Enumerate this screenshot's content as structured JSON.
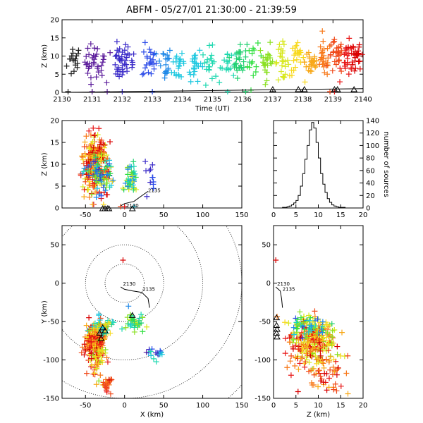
{
  "title": "ABFM - 05/27/01 21:30:00 - 21:39:59",
  "palette": [
    "#202020",
    "#5a1a9a",
    "#3a2ac8",
    "#2a4ae8",
    "#1e88e8",
    "#1ec8e0",
    "#1ed8b0",
    "#20d070",
    "#30e040",
    "#8ae020",
    "#d8e81e",
    "#f8d818",
    "#f8a818",
    "#f87818",
    "#f04818",
    "#e81818",
    "#d80000"
  ],
  "chart_data": [
    {
      "id": "time",
      "type": "scatter",
      "xlabel": "Time (UT)",
      "ylabel": "Z (km)",
      "xlim": [
        2130,
        2140
      ],
      "ylim": [
        0,
        20
      ],
      "xticks": [
        2130,
        2131,
        2132,
        2133,
        2134,
        2135,
        2136,
        2137,
        2138,
        2139,
        2140
      ],
      "yticks": [
        0,
        5,
        10,
        15,
        20
      ],
      "clusters": [
        {
          "t": 2130.4,
          "z": 8.5,
          "n": 18,
          "c": 0
        },
        {
          "t": 2131.0,
          "z": 8.5,
          "n": 24,
          "c": 1
        },
        {
          "t": 2131.4,
          "z": 7.5,
          "n": 12,
          "c": 1
        },
        {
          "t": 2131.9,
          "z": 8.0,
          "n": 30,
          "c": 2
        },
        {
          "t": 2132.2,
          "z": 8.5,
          "n": 14,
          "c": 2
        },
        {
          "t": 2132.9,
          "z": 8.5,
          "n": 24,
          "c": 3
        },
        {
          "t": 2133.4,
          "z": 8.0,
          "n": 20,
          "c": 4
        },
        {
          "t": 2133.9,
          "z": 7.5,
          "n": 20,
          "c": 5
        },
        {
          "t": 2134.4,
          "z": 8.0,
          "n": 24,
          "c": 5
        },
        {
          "t": 2134.9,
          "z": 7.5,
          "n": 20,
          "c": 6
        },
        {
          "t": 2135.5,
          "z": 8.5,
          "n": 16,
          "c": 6
        },
        {
          "t": 2135.9,
          "z": 9.0,
          "n": 28,
          "c": 7
        },
        {
          "t": 2136.4,
          "z": 8.0,
          "n": 14,
          "c": 8
        },
        {
          "t": 2136.8,
          "z": 8.5,
          "n": 24,
          "c": 9
        },
        {
          "t": 2137.3,
          "z": 8.5,
          "n": 26,
          "c": 10
        },
        {
          "t": 2137.8,
          "z": 9.0,
          "n": 24,
          "c": 11
        },
        {
          "t": 2138.3,
          "z": 8.5,
          "n": 28,
          "c": 12
        },
        {
          "t": 2138.7,
          "z": 9.0,
          "n": 26,
          "c": 13
        },
        {
          "t": 2139.1,
          "z": 9.5,
          "n": 28,
          "c": 14
        },
        {
          "t": 2139.5,
          "z": 9.0,
          "n": 26,
          "c": 15
        },
        {
          "t": 2139.85,
          "z": 10.0,
          "n": 28,
          "c": 16
        }
      ],
      "ground_marks": [
        {
          "t": 2130.2,
          "c": 0
        },
        {
          "t": 2131.0,
          "c": 1
        },
        {
          "t": 2131.5,
          "c": 1
        },
        {
          "t": 2132.0,
          "c": 2
        },
        {
          "t": 2133.0,
          "c": 3
        },
        {
          "t": 2135.5,
          "c": 6
        },
        {
          "t": 2136.1,
          "c": 7
        },
        {
          "t": 2138.9,
          "c": 14
        },
        {
          "t": 2139.05,
          "c": 15
        }
      ],
      "stations_t": [
        2137.0,
        2137.85,
        2138.05,
        2139.05,
        2139.15,
        2139.7
      ],
      "track": [
        [
          2130,
          0.0
        ],
        [
          2140,
          1.0
        ]
      ]
    },
    {
      "id": "xz",
      "type": "scatter",
      "ylabel": "Z (km)",
      "xlim": [
        -80,
        150
      ],
      "ylim": [
        0,
        20
      ],
      "xticks": [
        -50,
        0,
        50,
        100,
        150
      ],
      "yticks": [
        0,
        5,
        10,
        15,
        20
      ],
      "clusters": [
        {
          "x": -38,
          "z": 10,
          "sx": 8,
          "sz": 3.5,
          "n": 260,
          "c0": 10,
          "c1": 16
        },
        {
          "x": -32,
          "z": 8,
          "sx": 9,
          "sz": 2.5,
          "n": 70,
          "c0": 2,
          "c1": 9
        },
        {
          "x": 8,
          "z": 6.5,
          "sx": 4,
          "sz": 1.8,
          "n": 50,
          "c0": 4,
          "c1": 10
        },
        {
          "x": 35,
          "z": 6.5,
          "sx": 4,
          "sz": 2,
          "n": 12,
          "c0": 2,
          "c1": 4
        }
      ],
      "stations_x": [
        -28,
        -25,
        -22,
        -20,
        10
      ],
      "ground_marks": [
        {
          "x": -5,
          "c": 14
        },
        {
          "x": 0,
          "c": 15
        },
        {
          "x": 12,
          "c": 5
        }
      ],
      "track": [
        [
          -5,
          0.5
        ],
        [
          0,
          1.0
        ],
        [
          12,
          1.5
        ],
        [
          22,
          2.8
        ],
        [
          30,
          3.8
        ]
      ],
      "track_labels": [
        {
          "text": "2130",
          "x": 2,
          "z": 0.2
        },
        {
          "text": "2135",
          "x": 30,
          "z": 3.6
        }
      ]
    },
    {
      "id": "histogram",
      "type": "bar",
      "xlabel": "",
      "ylabel": "number of sources",
      "xlim": [
        0,
        20
      ],
      "ylim": [
        0,
        140
      ],
      "xticks": [
        0,
        5,
        10,
        15,
        20
      ],
      "yticks": [
        0,
        20,
        40,
        60,
        80,
        100,
        120,
        140
      ],
      "bin_width": 0.5,
      "bins_start": 2,
      "counts": [
        1,
        1,
        2,
        3,
        5,
        8,
        12,
        20,
        35,
        55,
        78,
        100,
        125,
        137,
        128,
        105,
        80,
        55,
        38,
        25,
        15,
        9,
        5,
        3,
        2,
        1,
        1,
        1
      ]
    },
    {
      "id": "xy",
      "type": "scatter",
      "xlabel": "X (km)",
      "ylabel": "Y (km)",
      "xlim": [
        -80,
        150
      ],
      "ylim": [
        -150,
        75
      ],
      "xticks": [
        -50,
        0,
        50,
        100,
        150
      ],
      "yticks": [
        -150,
        -100,
        -50,
        0,
        50
      ],
      "range_rings_km": [
        25,
        50,
        100,
        150,
        200
      ],
      "clusters": [
        {
          "x": -38,
          "y": -75,
          "sx": 6,
          "sy": 9,
          "n": 230,
          "c0": 11,
          "c1": 16
        },
        {
          "x": -30,
          "y": -58,
          "sx": 7,
          "sy": 6,
          "n": 60,
          "c0": 5,
          "c1": 12
        },
        {
          "x": -35,
          "y": -100,
          "sx": 6,
          "sy": 14,
          "n": 60,
          "c0": 9,
          "c1": 16
        },
        {
          "x": -22,
          "y": -130,
          "sx": 3,
          "sy": 8,
          "n": 25,
          "c0": 13,
          "c1": 16
        },
        {
          "x": 12,
          "y": -52,
          "sx": 6,
          "sy": 5,
          "n": 40,
          "c0": 5,
          "c1": 10
        },
        {
          "x": 35,
          "y": -93,
          "sx": 7,
          "sy": 4,
          "n": 18,
          "c0": 2,
          "c1": 6
        }
      ],
      "single_marks": [
        {
          "x": -2,
          "y": 30,
          "c": 16
        },
        {
          "x": 28,
          "y": -90,
          "c": 1
        },
        {
          "x": 5,
          "y": -30,
          "c": 4
        }
      ],
      "stations": [
        [
          -28,
          -58
        ],
        [
          -32,
          -65
        ],
        [
          -30,
          -72
        ],
        [
          -25,
          -62
        ],
        [
          10,
          -42
        ]
      ],
      "track": [
        [
          -5,
          -5
        ],
        [
          0,
          -8
        ],
        [
          10,
          -10
        ],
        [
          22,
          -12
        ],
        [
          30,
          -20
        ],
        [
          32,
          -32
        ]
      ],
      "track_labels": [
        {
          "text": "2130",
          "x": -2,
          "y": -3
        },
        {
          "text": "2135",
          "x": 23,
          "y": -10
        }
      ]
    },
    {
      "id": "zy",
      "type": "scatter",
      "xlabel": "Z (km)",
      "xlim": [
        0,
        20
      ],
      "ylim": [
        -150,
        75
      ],
      "xticks": [
        0,
        5,
        10,
        15,
        20
      ],
      "yticks": [
        -150,
        -100,
        -50,
        0,
        50
      ],
      "clusters": [
        {
          "z": 9,
          "y": -75,
          "sz": 2.5,
          "sy": 15,
          "n": 280,
          "c0": 9,
          "c1": 16
        },
        {
          "z": 8,
          "y": -55,
          "sz": 2,
          "sy": 8,
          "n": 60,
          "c0": 3,
          "c1": 10
        },
        {
          "z": 11,
          "y": -120,
          "sz": 3,
          "sy": 12,
          "n": 50,
          "c0": 12,
          "c1": 16
        }
      ],
      "single_marks": [
        {
          "z": 0.5,
          "y": 30,
          "c": 16
        }
      ],
      "stations": [
        [
          0.2,
          -45
        ],
        [
          0.2,
          -55
        ],
        [
          0.3,
          -60
        ],
        [
          0.2,
          -65
        ],
        [
          0.3,
          -70
        ]
      ],
      "track": [
        [
          0.5,
          -5
        ],
        [
          1.5,
          -10
        ],
        [
          1.8,
          -20
        ],
        [
          2.0,
          -32
        ]
      ],
      "track_labels": [
        {
          "text": "2130",
          "z": 0.8,
          "y": -3
        },
        {
          "text": "2135",
          "z": 2.0,
          "y": -10
        }
      ]
    }
  ]
}
